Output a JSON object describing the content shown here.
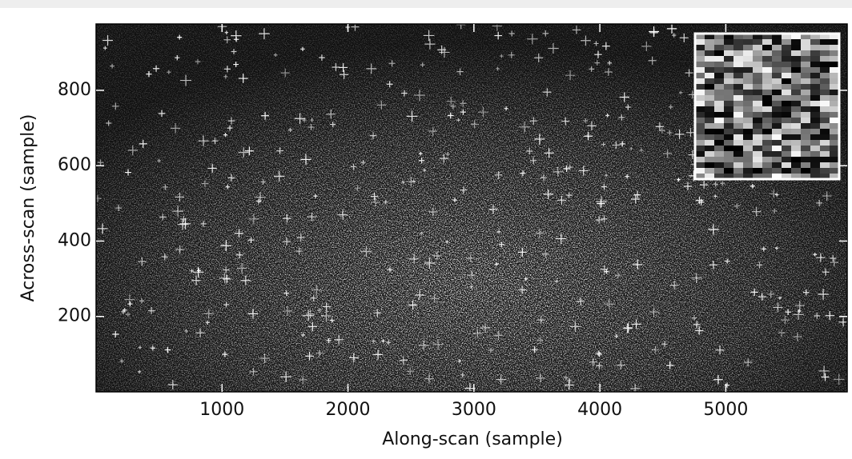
{
  "chart_data": {
    "type": "image",
    "xlabel": "Along-scan (sample)",
    "ylabel": "Across-scan (sample)",
    "xlim": [
      0,
      5964
    ],
    "ylim": [
      0,
      976
    ],
    "xticks": [
      1000,
      2000,
      3000,
      4000,
      5000
    ],
    "yticks": [
      200,
      400,
      600,
      800
    ]
  }
}
